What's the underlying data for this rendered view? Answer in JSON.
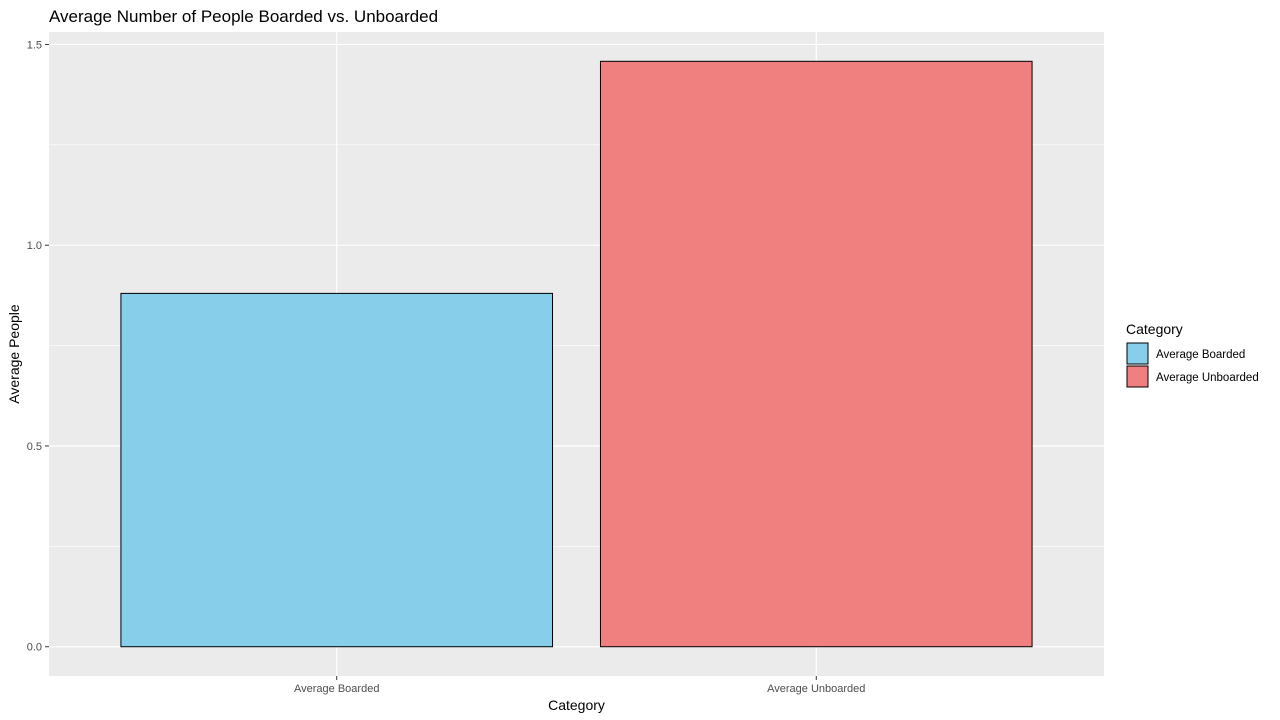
{
  "chart_data": {
    "type": "bar",
    "title": "Average Number of People Boarded vs. Unboarded",
    "xlabel": "Category",
    "ylabel": "Average People",
    "categories": [
      "Average Boarded",
      "Average Unboarded"
    ],
    "values": [
      0.88,
      1.458
    ],
    "colors": [
      "#87CEEB",
      "#F08080"
    ],
    "ylim": [
      -0.0729,
      1.531
    ],
    "y_ticks": [
      0.0,
      0.5,
      1.0,
      1.5
    ],
    "y_tick_labels": [
      "0.0",
      "0.5",
      "1.0",
      "1.5"
    ],
    "grid": true,
    "legend": {
      "title": "Category",
      "position": "right",
      "entries": [
        "Average Boarded",
        "Average Unboarded"
      ]
    }
  }
}
